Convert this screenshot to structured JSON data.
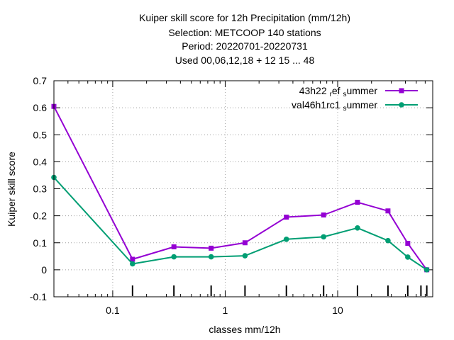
{
  "chart_data": {
    "type": "line",
    "title_lines": [
      "Kuiper skill score  for 12h Precipitation (mm/12h)",
      "Selection: METCOOP    140 stations",
      "Period: 20220701-20220731",
      "Used  00,06,12,18  + 12 15 ... 48"
    ],
    "xlabel": "classes mm/12h",
    "ylabel": "Kuiper skill score",
    "xscale": "log",
    "xlim": [
      0.03,
      70
    ],
    "ylim": [
      -0.1,
      0.7
    ],
    "x_ticks": [
      0.1,
      1,
      10
    ],
    "x_tick_labels": [
      "0.1",
      "1",
      "10"
    ],
    "y_ticks": [
      -0.1,
      0,
      0.1,
      0.2,
      0.3,
      0.4,
      0.5,
      0.6,
      0.7
    ],
    "y_tick_labels": [
      "-0.1",
      "0",
      "0.1",
      "0.2",
      "0.3",
      "0.4",
      "0.5",
      "0.6",
      "0.7"
    ],
    "class_tick_marks": [
      0.15,
      0.35,
      0.75,
      1.5,
      3.5,
      7.5,
      15,
      28,
      42,
      55,
      62
    ],
    "grid": true,
    "legend_position": "top-right",
    "x": [
      0.03,
      0.15,
      0.35,
      0.75,
      1.5,
      3.5,
      7.5,
      15,
      28,
      42,
      62
    ],
    "series": [
      {
        "name": "43h22_ref_summer",
        "label_parts": [
          "43h22",
          "ref",
          "s",
          "ummer"
        ],
        "color": "#9400d3",
        "marker": "filled-square",
        "values": [
          0.605,
          0.039,
          0.085,
          0.08,
          0.1,
          0.195,
          0.203,
          0.25,
          0.218,
          0.098,
          0.0
        ]
      },
      {
        "name": "val46h1rc1_summer",
        "label_parts": [
          "val46h1rc1",
          "s",
          "ummer"
        ],
        "color": "#009e73",
        "marker": "filled-circle",
        "values": [
          0.342,
          0.022,
          0.048,
          0.048,
          0.052,
          0.113,
          0.122,
          0.155,
          0.108,
          0.047,
          0.0
        ]
      }
    ]
  }
}
